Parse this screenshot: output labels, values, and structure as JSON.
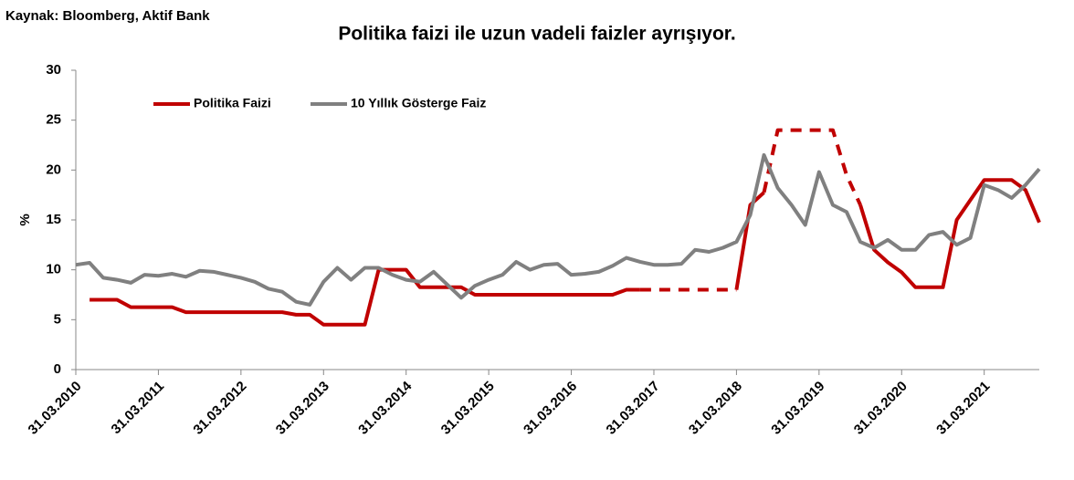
{
  "source": "Kaynak: Bloomberg, Aktif Bank",
  "chart_data": {
    "type": "line",
    "title": "Politika faizi ile uzun vadeli faizler ayrışıyor.",
    "y_label": "%",
    "legend": "top-left",
    "x": [
      2010.25,
      2010.417,
      2010.583,
      2010.75,
      2010.917,
      2011.083,
      2011.25,
      2011.417,
      2011.583,
      2011.75,
      2011.917,
      2012.083,
      2012.25,
      2012.417,
      2012.583,
      2012.75,
      2012.917,
      2013.083,
      2013.25,
      2013.417,
      2013.583,
      2013.75,
      2013.917,
      2014.083,
      2014.25,
      2014.417,
      2014.583,
      2014.75,
      2014.917,
      2015.083,
      2015.25,
      2015.417,
      2015.583,
      2015.75,
      2015.917,
      2016.083,
      2016.25,
      2016.417,
      2016.583,
      2016.75,
      2016.917,
      2017.083,
      2017.25,
      2017.417,
      2017.583,
      2017.75,
      2017.917,
      2018.083,
      2018.25,
      2018.417,
      2018.583,
      2018.75,
      2018.917,
      2019.083,
      2019.25,
      2019.417,
      2019.583,
      2019.75,
      2019.917,
      2020.083,
      2020.25,
      2020.417,
      2020.583,
      2020.75,
      2020.917,
      2021.083,
      2021.25,
      2021.417,
      2021.583,
      2021.75,
      2021.917
    ],
    "series": [
      {
        "name": "Politika Faizi",
        "color": "#c00000",
        "values": [
          null,
          7,
          7,
          7,
          6.25,
          6.25,
          6.25,
          6.25,
          5.75,
          5.75,
          5.75,
          5.75,
          5.75,
          5.75,
          5.75,
          5.75,
          5.5,
          5.5,
          4.5,
          4.5,
          4.5,
          4.5,
          10,
          10,
          10,
          8.25,
          8.25,
          8.25,
          8.25,
          7.5,
          7.5,
          7.5,
          7.5,
          7.5,
          7.5,
          7.5,
          7.5,
          7.5,
          7.5,
          7.5,
          8,
          8,
          8,
          8,
          8,
          8,
          8,
          8,
          8,
          16.5,
          17.75,
          24,
          24,
          24,
          24,
          24,
          19.5,
          16.5,
          12,
          10.75,
          9.75,
          8.25,
          8.25,
          8.25,
          15,
          17,
          19,
          19,
          19,
          18,
          14.75
        ],
        "line_styles": [
          "solid",
          "solid",
          "solid",
          "solid",
          "solid",
          "solid",
          "solid",
          "solid",
          "solid",
          "solid",
          "solid",
          "solid",
          "solid",
          "solid",
          "solid",
          "solid",
          "solid",
          "solid",
          "solid",
          "solid",
          "solid",
          "solid",
          "solid",
          "solid",
          "solid",
          "solid",
          "solid",
          "solid",
          "solid",
          "solid",
          "solid",
          "solid",
          "solid",
          "solid",
          "solid",
          "solid",
          "solid",
          "solid",
          "solid",
          "solid",
          "solid",
          "solid",
          "dashed",
          "dashed",
          "dashed",
          "dashed",
          "dashed",
          "dashed",
          "dashed",
          "solid",
          "solid",
          "dashed",
          "dashed",
          "dashed",
          "dashed",
          "dashed",
          "dashed",
          "dashed",
          "solid",
          "solid",
          "solid",
          "solid",
          "solid",
          "solid",
          "solid",
          "solid",
          "solid",
          "solid",
          "solid",
          "solid",
          "solid"
        ]
      },
      {
        "name": "10 Yıllık Gösterge Faiz",
        "color": "#808080",
        "values": [
          10.5,
          10.7,
          9.2,
          9.0,
          8.7,
          9.5,
          9.4,
          9.6,
          9.3,
          9.9,
          9.8,
          9.5,
          9.2,
          8.8,
          8.1,
          7.8,
          6.8,
          6.5,
          8.8,
          10.2,
          9.0,
          10.2,
          10.2,
          9.5,
          9.0,
          8.8,
          9.8,
          8.5,
          7.2,
          8.4,
          9.0,
          9.5,
          10.8,
          10.0,
          10.5,
          10.6,
          9.5,
          9.6,
          9.8,
          10.4,
          11.2,
          10.8,
          10.5,
          10.5,
          10.6,
          12.0,
          11.8,
          12.2,
          12.8,
          15.5,
          21.5,
          18.2,
          16.5,
          14.5,
          19.8,
          16.5,
          15.8,
          12.8,
          12.2,
          13.0,
          12.0,
          12.0,
          13.5,
          13.8,
          12.5,
          13.2,
          18.5,
          18.0,
          17.2,
          18.5,
          20.1
        ]
      }
    ],
    "xlim": [
      2010.25,
      2021.917
    ],
    "xticks": [
      {
        "value": 2010.25,
        "label": "31.03.2010"
      },
      {
        "value": 2011.25,
        "label": "31.03.2011"
      },
      {
        "value": 2012.25,
        "label": "31.03.2012"
      },
      {
        "value": 2013.25,
        "label": "31.03.2013"
      },
      {
        "value": 2014.25,
        "label": "31.03.2014"
      },
      {
        "value": 2015.25,
        "label": "31.03.2015"
      },
      {
        "value": 2016.25,
        "label": "31.03.2016"
      },
      {
        "value": 2017.25,
        "label": "31.03.2017"
      },
      {
        "value": 2018.25,
        "label": "31.03.2018"
      },
      {
        "value": 2019.25,
        "label": "31.03.2019"
      },
      {
        "value": 2020.25,
        "label": "31.03.2020"
      },
      {
        "value": 2021.25,
        "label": "31.03.2021"
      }
    ],
    "ylim": [
      0,
      30
    ],
    "yticks": [
      0,
      5,
      10,
      15,
      20,
      25,
      30
    ]
  }
}
